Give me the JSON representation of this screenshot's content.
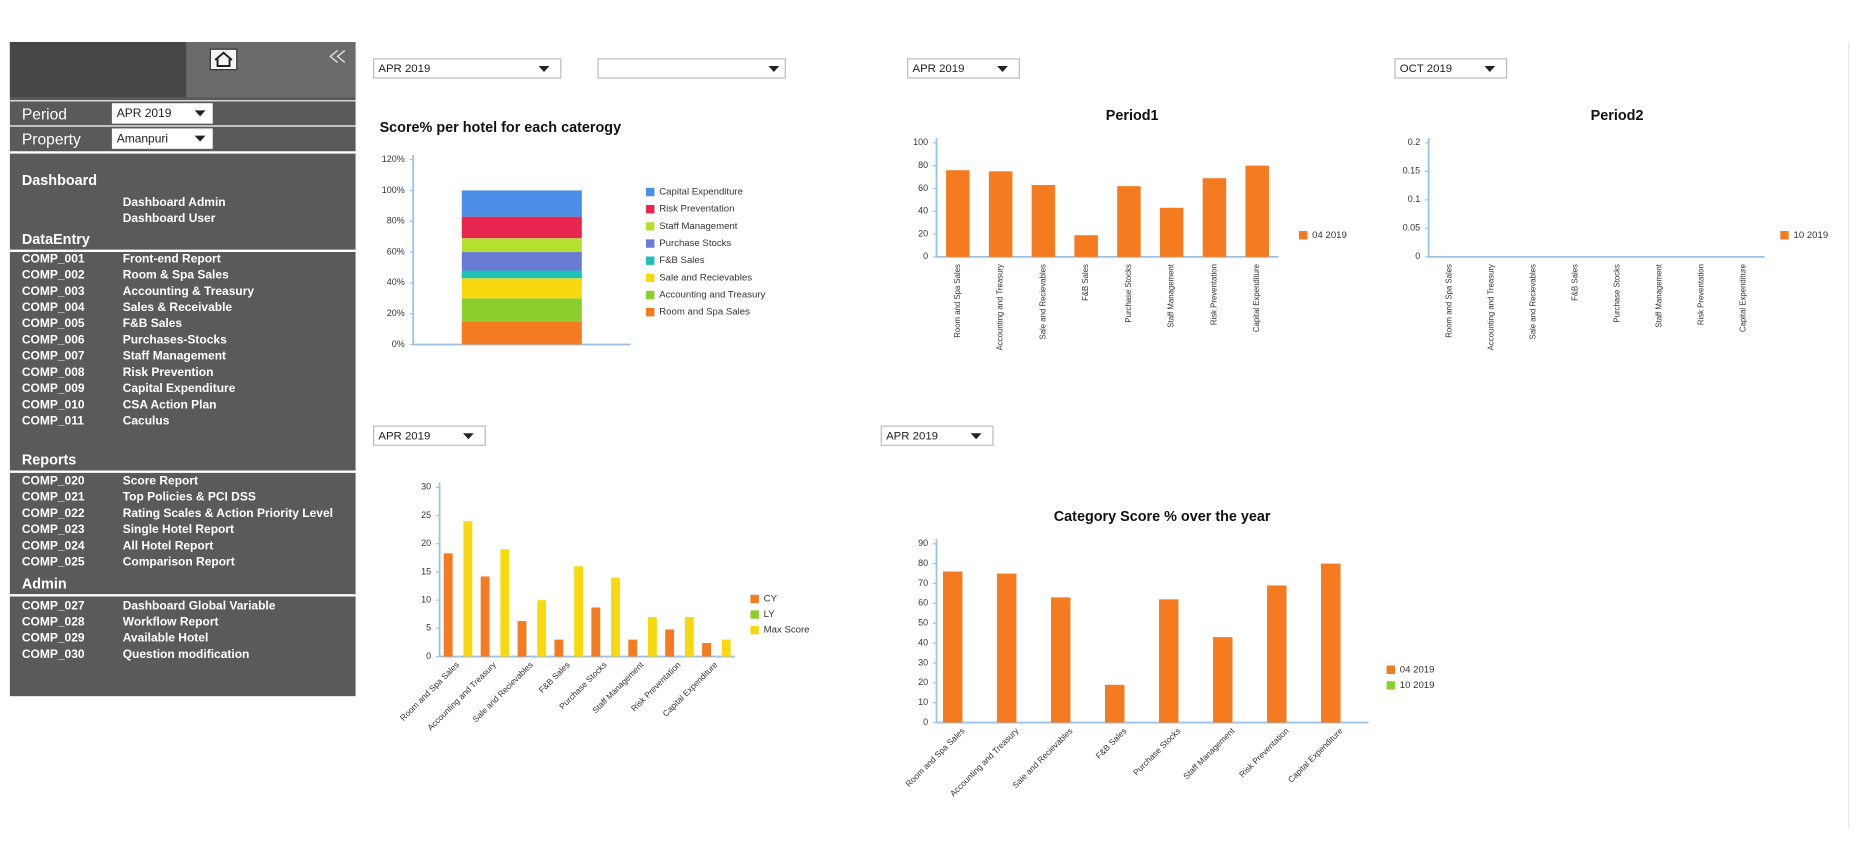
{
  "sidebar": {
    "period_label": "Period",
    "period_value": "APR 2019",
    "property_label": "Property",
    "property_value": "Amanpuri",
    "sections": [
      {
        "title": "Dashboard",
        "items": [
          {
            "name": "Dashboard Admin"
          },
          {
            "name": "Dashboard User"
          }
        ]
      },
      {
        "title": "DataEntry",
        "items": [
          {
            "code": "COMP_001",
            "name": "Front-end Report"
          },
          {
            "code": "COMP_002",
            "name": "Room & Spa Sales"
          },
          {
            "code": "COMP_003",
            "name": "Accounting & Treasury"
          },
          {
            "code": "COMP_004",
            "name": "Sales & Receivable"
          },
          {
            "code": "COMP_005",
            "name": "F&B Sales"
          },
          {
            "code": "COMP_006",
            "name": "Purchases-Stocks"
          },
          {
            "code": "COMP_007",
            "name": "Staff Management"
          },
          {
            "code": "COMP_008",
            "name": "Risk Prevention"
          },
          {
            "code": "COMP_009",
            "name": "Capital Expenditure"
          },
          {
            "code": "COMP_010",
            "name": "CSA Action Plan"
          },
          {
            "code": "COMP_011",
            "name": "Caculus"
          }
        ]
      },
      {
        "title": "Reports",
        "items": [
          {
            "code": "COMP_020",
            "name": "Score Report"
          },
          {
            "code": "COMP_021",
            "name": "Top Policies & PCI DSS"
          },
          {
            "code": "COMP_022",
            "name": "Rating Scales & Action Priority Level"
          },
          {
            "code": "COMP_023",
            "name": "Single Hotel Report"
          },
          {
            "code": "COMP_024",
            "name": "All Hotel Report"
          },
          {
            "code": "COMP_025",
            "name": "Comparison Report"
          }
        ]
      },
      {
        "title": "Admin",
        "items": [
          {
            "code": "COMP_027",
            "name": "Dashboard Global Variable"
          },
          {
            "code": "COMP_028",
            "name": "Workflow Report"
          },
          {
            "code": "COMP_029",
            "name": "Available Hotel"
          },
          {
            "code": "COMP_030",
            "name": "Question modification"
          }
        ]
      }
    ]
  },
  "chart_data": [
    {
      "type": "stacked-bar",
      "filter": "APR 2019",
      "title": "Score% per hotel for each caterogy",
      "categories": [
        null
      ],
      "series": [
        {
          "name": "Room and Spa Sales",
          "color": "#f47b20",
          "values": [
            15
          ]
        },
        {
          "name": "Accounting and Treasury",
          "color": "#8ccf2c",
          "values": [
            15
          ]
        },
        {
          "name": "Sale and Recievables",
          "color": "#f8d90f",
          "values": [
            13
          ]
        },
        {
          "name": "F&B Sales",
          "color": "#1cc2b8",
          "values": [
            5
          ]
        },
        {
          "name": "Purchase Stocks",
          "color": "#6a7bd6",
          "values": [
            12
          ]
        },
        {
          "name": "Staff Management",
          "color": "#b5e02f",
          "values": [
            9
          ]
        },
        {
          "name": "Risk Preventation",
          "color": "#e8254f",
          "values": [
            14
          ]
        },
        {
          "name": "Capital Expenditure",
          "color": "#4a8ee8",
          "values": [
            17
          ]
        }
      ],
      "ylim": [
        0,
        120
      ],
      "yticks": [
        {
          "value": 0,
          "label": "0%"
        },
        {
          "value": 20,
          "label": "20%"
        },
        {
          "value": 40,
          "label": "40%"
        },
        {
          "value": 60,
          "label": "60%"
        },
        {
          "value": 80,
          "label": "80%"
        },
        {
          "value": 100,
          "label": "100%"
        },
        {
          "value": 120,
          "label": "120%"
        }
      ]
    },
    {
      "type": "bar",
      "filter": "APR 2019",
      "title": "Period1",
      "categories": [
        "Room and Spa Sales",
        "Accounting and Treasury",
        "Sale and Recievables",
        "F&B Sales",
        "Purchase Stocks",
        "Staff Management",
        "Risk Preventation",
        "Capital Expenditure"
      ],
      "series": [
        {
          "name": "04 2019",
          "color": "#f47b20",
          "values": [
            76,
            75,
            63,
            19,
            62,
            43,
            69,
            80
          ]
        }
      ],
      "ylim": [
        0,
        100
      ],
      "yticks": [
        0,
        20,
        40,
        60,
        80,
        100
      ]
    },
    {
      "type": "bar",
      "filter": "OCT 2019",
      "title": "Period2",
      "categories": [
        "Room and Spa Sales",
        "Accounting and Treasury",
        "Sale and Recievables",
        "F&B Sales",
        "Purchase Stocks",
        "Staff Management",
        "Risk Preventation",
        "Capital Expenditure"
      ],
      "series": [
        {
          "name": "10 2019",
          "color": "#f47b20",
          "values": [
            0,
            0,
            0,
            0,
            0,
            0,
            0,
            0
          ]
        }
      ],
      "ylim": [
        0,
        0.2
      ],
      "yticks": [
        0,
        0.05,
        0.1,
        0.15,
        0.2
      ]
    },
    {
      "type": "bar",
      "filter": "APR 2019",
      "categories": [
        "Room and Spa Sales",
        "Accounting and Treasury",
        "Sale and Recievables",
        "F&B Sales",
        "Purchase Stocks",
        "Staff Management",
        "Risk Preventation",
        "Capital Expenditure"
      ],
      "series": [
        {
          "name": "CY",
          "color": "#f47b20",
          "values": [
            18.3,
            14.2,
            6.3,
            3,
            8.7,
            3,
            4.8,
            2.4
          ]
        },
        {
          "name": "LY",
          "color": "#8ccf2c",
          "values": [
            null,
            null,
            null,
            null,
            null,
            null,
            null,
            null
          ]
        },
        {
          "name": "Max Score",
          "color": "#f8d90f",
          "values": [
            24,
            19,
            10,
            16,
            14,
            7,
            7,
            3
          ]
        }
      ],
      "ylim": [
        0,
        30
      ],
      "yticks": [
        0,
        5,
        10,
        15,
        20,
        25,
        30
      ]
    },
    {
      "type": "bar",
      "filter": "APR 2019",
      "title": "Category Score % over the year",
      "categories": [
        "Room and Spa Sales",
        "Accounting and Treasury",
        "Sale and Recievables",
        "F&B Sales",
        "Purchase Stocks",
        "Staff Management",
        "Risk Preventation",
        "Capital Expenditure"
      ],
      "series": [
        {
          "name": "04 2019",
          "color": "#f47b20",
          "values": [
            76,
            75,
            63,
            19,
            62,
            43,
            69,
            80
          ]
        },
        {
          "name": "10 2019",
          "color": "#8ccf2c",
          "values": [
            null,
            null,
            null,
            null,
            null,
            null,
            null,
            null
          ]
        }
      ],
      "ylim": [
        0,
        90
      ],
      "yticks": [
        0,
        10,
        20,
        30,
        40,
        50,
        60,
        70,
        80,
        90
      ]
    }
  ]
}
